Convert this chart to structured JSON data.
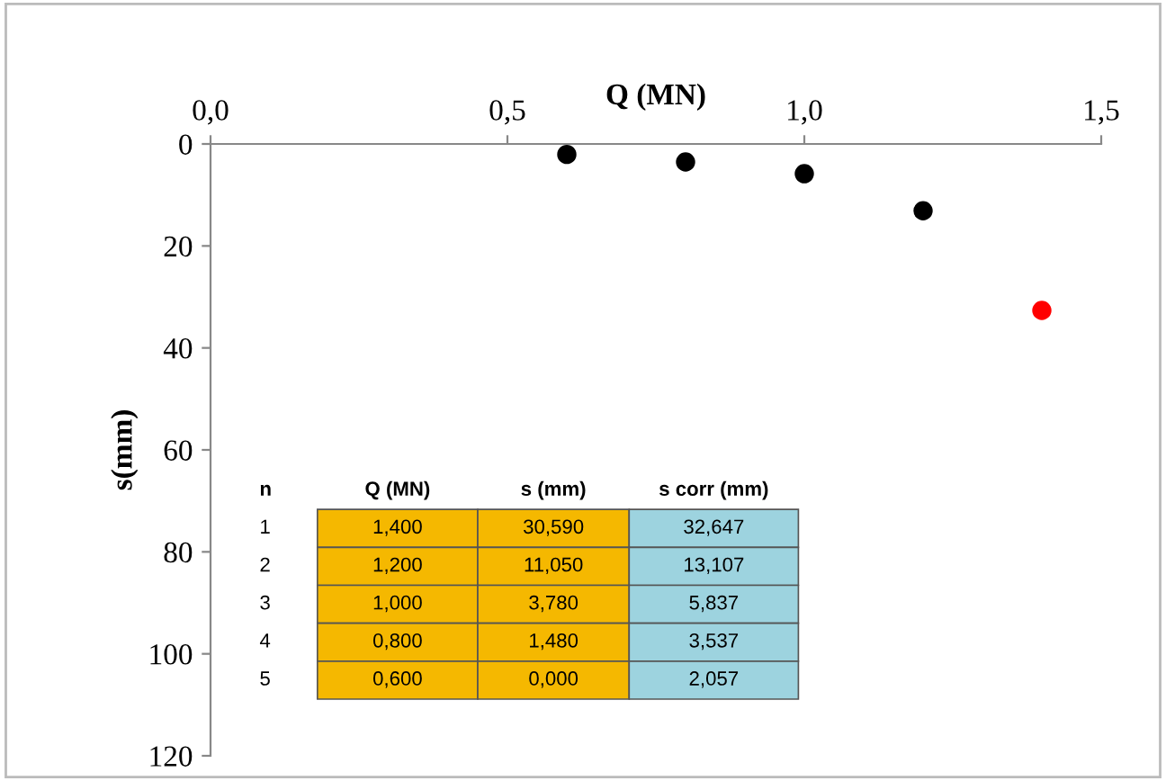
{
  "chart_data": {
    "type": "scatter",
    "xlabel": "Q (MN)",
    "ylabel": "s(mm)",
    "series": [
      {
        "x": [
          0.6,
          0.8,
          1.0,
          1.2,
          1.4
        ],
        "values": [
          2.057,
          3.537,
          5.837,
          13.107,
          32.647
        ],
        "colors": [
          "#000000",
          "#000000",
          "#000000",
          "#000000",
          "#ff0000"
        ]
      }
    ],
    "xlim": [
      0,
      1.5
    ],
    "xticks": [
      {
        "value": 0,
        "label": "0,0"
      },
      {
        "value": 0.5,
        "label": "0,5"
      },
      {
        "value": 1.0,
        "label": "1,0"
      },
      {
        "value": 1.5,
        "label": "1,5"
      }
    ],
    "ylim": [
      120,
      0
    ],
    "yticks": [
      0,
      20,
      40,
      60,
      80,
      100,
      120
    ],
    "grid": false,
    "legend": false,
    "marker": "circle",
    "annotations": [
      "n",
      "Q (MN)",
      "s (mm)",
      "s corr (mm)",
      "1",
      "1,400",
      "30,590",
      "32,647",
      "2",
      "1,200",
      "11,050",
      "13,107",
      "3",
      "1,000",
      "3,780",
      "5,837",
      "4",
      "0,800",
      "1,480",
      "3,537",
      "5",
      "0,600",
      "0,000",
      "2,057"
    ]
  }
}
